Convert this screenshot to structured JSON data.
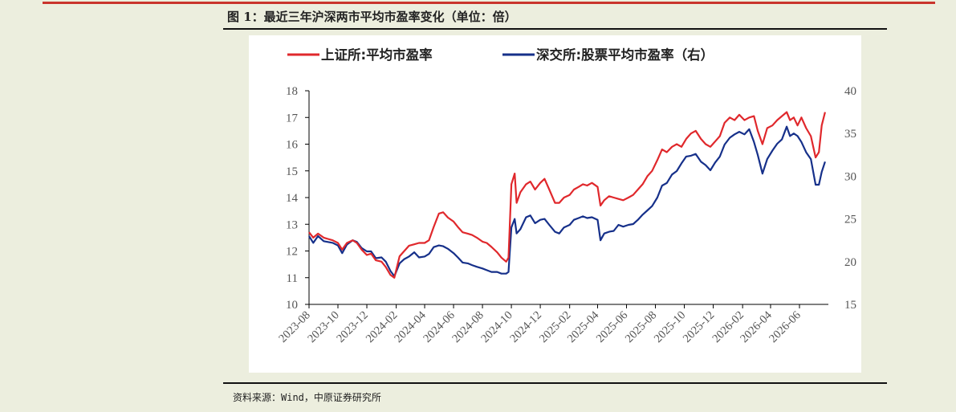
{
  "figure": {
    "title": "图 1：最近三年沪深两市平均市盈率变化（单位：倍）",
    "source": "资料来源：Wind，中原证券研究所"
  },
  "chart_data": {
    "type": "line",
    "title": "",
    "xlabel": "",
    "ylabel": "",
    "y2label": "",
    "ylim": [
      10,
      18
    ],
    "y2lim": [
      15,
      40
    ],
    "yticks": [
      10,
      11,
      12,
      13,
      14,
      15,
      16,
      17,
      18
    ],
    "y2ticks": [
      15,
      20,
      25,
      30,
      35,
      40
    ],
    "xlim": [
      "2023-08-01",
      "2026-08-01"
    ],
    "x_tick_labels": [
      "2023-08",
      "2023-10",
      "2023-12",
      "2024-02",
      "2024-04",
      "2024-06",
      "2024-08",
      "2024-10",
      "2024-12",
      "2025-02",
      "2025-04",
      "2025-06",
      "2025-08",
      "2025-10",
      "2025-12",
      "2026-02",
      "2026-04",
      "2026-06"
    ],
    "grid": false,
    "legend_position": "top",
    "series": [
      {
        "name": "上证所:平均市盈率",
        "axis": "left",
        "color": "#e0282c",
        "points": [
          [
            "2023-08-01",
            12.7
          ],
          [
            "2023-08-10",
            12.5
          ],
          [
            "2023-08-20",
            12.65
          ],
          [
            "2023-09-01",
            12.5
          ],
          [
            "2023-09-10",
            12.45
          ],
          [
            "2023-09-20",
            12.4
          ],
          [
            "2023-10-01",
            12.3
          ],
          [
            "2023-10-10",
            12.05
          ],
          [
            "2023-10-20",
            12.3
          ],
          [
            "2023-11-01",
            12.4
          ],
          [
            "2023-11-10",
            12.3
          ],
          [
            "2023-11-20",
            12.05
          ],
          [
            "2023-12-01",
            11.85
          ],
          [
            "2023-12-10",
            11.9
          ],
          [
            "2023-12-20",
            11.65
          ],
          [
            "2024-01-01",
            11.6
          ],
          [
            "2024-01-10",
            11.4
          ],
          [
            "2024-01-20",
            11.1
          ],
          [
            "2024-01-28",
            11.0
          ],
          [
            "2024-02-08",
            11.8
          ],
          [
            "2024-02-18",
            12.0
          ],
          [
            "2024-02-28",
            12.2
          ],
          [
            "2024-03-10",
            12.25
          ],
          [
            "2024-03-20",
            12.3
          ],
          [
            "2024-04-01",
            12.3
          ],
          [
            "2024-04-10",
            12.4
          ],
          [
            "2024-04-20",
            12.9
          ],
          [
            "2024-05-01",
            13.4
          ],
          [
            "2024-05-10",
            13.45
          ],
          [
            "2024-05-20",
            13.25
          ],
          [
            "2024-06-01",
            13.1
          ],
          [
            "2024-06-10",
            12.9
          ],
          [
            "2024-06-20",
            12.7
          ],
          [
            "2024-07-01",
            12.65
          ],
          [
            "2024-07-10",
            12.6
          ],
          [
            "2024-07-20",
            12.5
          ],
          [
            "2024-08-01",
            12.35
          ],
          [
            "2024-08-10",
            12.3
          ],
          [
            "2024-08-20",
            12.15
          ],
          [
            "2024-09-01",
            11.95
          ],
          [
            "2024-09-10",
            11.75
          ],
          [
            "2024-09-20",
            11.6
          ],
          [
            "2024-09-25",
            11.75
          ],
          [
            "2024-10-01",
            14.5
          ],
          [
            "2024-10-08",
            14.9
          ],
          [
            "2024-10-12",
            13.8
          ],
          [
            "2024-10-20",
            14.2
          ],
          [
            "2024-11-01",
            14.5
          ],
          [
            "2024-11-10",
            14.6
          ],
          [
            "2024-11-20",
            14.3
          ],
          [
            "2024-12-01",
            14.55
          ],
          [
            "2024-12-10",
            14.7
          ],
          [
            "2024-12-20",
            14.3
          ],
          [
            "2025-01-01",
            13.8
          ],
          [
            "2025-01-10",
            13.8
          ],
          [
            "2025-01-20",
            14.0
          ],
          [
            "2025-02-01",
            14.1
          ],
          [
            "2025-02-10",
            14.3
          ],
          [
            "2025-02-20",
            14.4
          ],
          [
            "2025-03-01",
            14.5
          ],
          [
            "2025-03-10",
            14.45
          ],
          [
            "2025-03-20",
            14.55
          ],
          [
            "2025-04-01",
            14.4
          ],
          [
            "2025-04-07",
            13.7
          ],
          [
            "2025-04-15",
            13.9
          ],
          [
            "2025-04-25",
            14.05
          ],
          [
            "2025-05-05",
            14.0
          ],
          [
            "2025-05-15",
            13.95
          ],
          [
            "2025-05-25",
            13.9
          ],
          [
            "2025-06-05",
            14.0
          ],
          [
            "2025-06-15",
            14.1
          ],
          [
            "2025-06-25",
            14.3
          ],
          [
            "2025-07-05",
            14.5
          ],
          [
            "2025-07-15",
            14.8
          ],
          [
            "2025-07-25",
            15.0
          ],
          [
            "2025-08-05",
            15.4
          ],
          [
            "2025-08-15",
            15.8
          ],
          [
            "2025-08-25",
            15.7
          ],
          [
            "2025-09-05",
            15.9
          ],
          [
            "2025-09-15",
            16.0
          ],
          [
            "2025-09-25",
            15.9
          ],
          [
            "2025-10-05",
            16.2
          ],
          [
            "2025-10-15",
            16.4
          ],
          [
            "2025-10-25",
            16.5
          ],
          [
            "2025-11-05",
            16.2
          ],
          [
            "2025-11-15",
            16.0
          ],
          [
            "2025-11-25",
            15.9
          ],
          [
            "2025-12-05",
            16.1
          ],
          [
            "2025-12-15",
            16.3
          ],
          [
            "2025-12-25",
            16.8
          ],
          [
            "2026-01-05",
            17.0
          ],
          [
            "2026-01-15",
            16.9
          ],
          [
            "2026-01-25",
            17.1
          ],
          [
            "2026-02-05",
            16.9
          ],
          [
            "2026-02-15",
            17.0
          ],
          [
            "2026-02-25",
            17.05
          ],
          [
            "2026-03-05",
            16.5
          ],
          [
            "2026-03-15",
            16.0
          ],
          [
            "2026-03-25",
            16.6
          ],
          [
            "2026-04-05",
            16.7
          ],
          [
            "2026-04-15",
            16.9
          ],
          [
            "2026-04-25",
            17.05
          ],
          [
            "2026-05-05",
            17.2
          ],
          [
            "2026-05-12",
            16.9
          ],
          [
            "2026-05-20",
            17.0
          ],
          [
            "2026-05-28",
            16.7
          ],
          [
            "2026-06-05",
            17.0
          ],
          [
            "2026-06-15",
            16.6
          ],
          [
            "2026-06-25",
            16.3
          ],
          [
            "2026-07-05",
            15.5
          ],
          [
            "2026-07-12",
            15.7
          ],
          [
            "2026-07-18",
            16.7
          ],
          [
            "2026-07-25",
            17.2
          ]
        ]
      },
      {
        "name": "深交所:股票平均市盈率（右）",
        "axis": "right",
        "color": "#16308a",
        "points": [
          [
            "2023-08-01",
            23.0
          ],
          [
            "2023-08-10",
            22.2
          ],
          [
            "2023-08-20",
            23.0
          ],
          [
            "2023-09-01",
            22.4
          ],
          [
            "2023-09-10",
            22.3
          ],
          [
            "2023-09-20",
            22.2
          ],
          [
            "2023-10-01",
            21.9
          ],
          [
            "2023-10-10",
            21.0
          ],
          [
            "2023-10-20",
            22.0
          ],
          [
            "2023-11-01",
            22.5
          ],
          [
            "2023-11-10",
            22.3
          ],
          [
            "2023-11-20",
            21.6
          ],
          [
            "2023-12-01",
            21.2
          ],
          [
            "2023-12-10",
            21.2
          ],
          [
            "2023-12-20",
            20.4
          ],
          [
            "2024-01-01",
            20.5
          ],
          [
            "2024-01-10",
            20.0
          ],
          [
            "2024-01-20",
            18.9
          ],
          [
            "2024-01-28",
            18.3
          ],
          [
            "2024-02-08",
            19.8
          ],
          [
            "2024-02-18",
            20.3
          ],
          [
            "2024-02-28",
            20.6
          ],
          [
            "2024-03-10",
            21.1
          ],
          [
            "2024-03-20",
            20.5
          ],
          [
            "2024-04-01",
            20.6
          ],
          [
            "2024-04-10",
            20.9
          ],
          [
            "2024-04-20",
            21.7
          ],
          [
            "2024-05-01",
            21.9
          ],
          [
            "2024-05-10",
            21.8
          ],
          [
            "2024-05-20",
            21.5
          ],
          [
            "2024-06-01",
            21.0
          ],
          [
            "2024-06-10",
            20.5
          ],
          [
            "2024-06-20",
            19.9
          ],
          [
            "2024-07-01",
            19.8
          ],
          [
            "2024-07-10",
            19.6
          ],
          [
            "2024-07-20",
            19.4
          ],
          [
            "2024-08-01",
            19.2
          ],
          [
            "2024-08-10",
            19.0
          ],
          [
            "2024-08-20",
            18.8
          ],
          [
            "2024-09-01",
            18.8
          ],
          [
            "2024-09-10",
            18.6
          ],
          [
            "2024-09-20",
            18.6
          ],
          [
            "2024-09-25",
            18.8
          ],
          [
            "2024-10-01",
            24.0
          ],
          [
            "2024-10-08",
            25.0
          ],
          [
            "2024-10-12",
            23.3
          ],
          [
            "2024-10-20",
            23.8
          ],
          [
            "2024-11-01",
            25.2
          ],
          [
            "2024-11-10",
            25.4
          ],
          [
            "2024-11-20",
            24.5
          ],
          [
            "2024-12-01",
            24.9
          ],
          [
            "2024-12-10",
            25.0
          ],
          [
            "2024-12-20",
            24.3
          ],
          [
            "2025-01-01",
            23.5
          ],
          [
            "2025-01-10",
            23.3
          ],
          [
            "2025-01-20",
            24.0
          ],
          [
            "2025-02-01",
            24.3
          ],
          [
            "2025-02-10",
            24.9
          ],
          [
            "2025-02-20",
            25.1
          ],
          [
            "2025-03-01",
            25.3
          ],
          [
            "2025-03-10",
            25.1
          ],
          [
            "2025-03-20",
            25.2
          ],
          [
            "2025-04-01",
            24.9
          ],
          [
            "2025-04-07",
            22.5
          ],
          [
            "2025-04-15",
            23.3
          ],
          [
            "2025-04-25",
            23.5
          ],
          [
            "2025-05-05",
            23.6
          ],
          [
            "2025-05-15",
            24.3
          ],
          [
            "2025-05-25",
            24.1
          ],
          [
            "2025-06-05",
            24.3
          ],
          [
            "2025-06-15",
            24.4
          ],
          [
            "2025-06-25",
            24.9
          ],
          [
            "2025-07-05",
            25.5
          ],
          [
            "2025-07-15",
            26.0
          ],
          [
            "2025-07-25",
            26.5
          ],
          [
            "2025-08-05",
            27.5
          ],
          [
            "2025-08-15",
            28.9
          ],
          [
            "2025-08-25",
            29.2
          ],
          [
            "2025-09-05",
            30.2
          ],
          [
            "2025-09-15",
            30.6
          ],
          [
            "2025-09-25",
            31.5
          ],
          [
            "2025-10-05",
            32.3
          ],
          [
            "2025-10-15",
            32.4
          ],
          [
            "2025-10-25",
            32.6
          ],
          [
            "2025-11-05",
            31.7
          ],
          [
            "2025-11-15",
            31.3
          ],
          [
            "2025-11-25",
            30.7
          ],
          [
            "2025-12-05",
            31.6
          ],
          [
            "2025-12-15",
            32.3
          ],
          [
            "2025-12-25",
            33.7
          ],
          [
            "2026-01-05",
            34.5
          ],
          [
            "2026-01-15",
            34.9
          ],
          [
            "2026-01-25",
            35.2
          ],
          [
            "2026-02-05",
            34.9
          ],
          [
            "2026-02-15",
            35.5
          ],
          [
            "2026-02-25",
            34.0
          ],
          [
            "2026-03-05",
            32.5
          ],
          [
            "2026-03-15",
            30.3
          ],
          [
            "2026-03-25",
            32.0
          ],
          [
            "2026-04-05",
            33.0
          ],
          [
            "2026-04-15",
            33.8
          ],
          [
            "2026-04-25",
            34.3
          ],
          [
            "2026-05-05",
            35.8
          ],
          [
            "2026-05-12",
            34.7
          ],
          [
            "2026-05-20",
            35.0
          ],
          [
            "2026-05-28",
            34.7
          ],
          [
            "2026-06-05",
            34.0
          ],
          [
            "2026-06-15",
            32.8
          ],
          [
            "2026-06-25",
            32.0
          ],
          [
            "2026-07-05",
            29.0
          ],
          [
            "2026-07-12",
            29.0
          ],
          [
            "2026-07-18",
            30.5
          ],
          [
            "2026-07-25",
            31.7
          ]
        ]
      }
    ]
  }
}
